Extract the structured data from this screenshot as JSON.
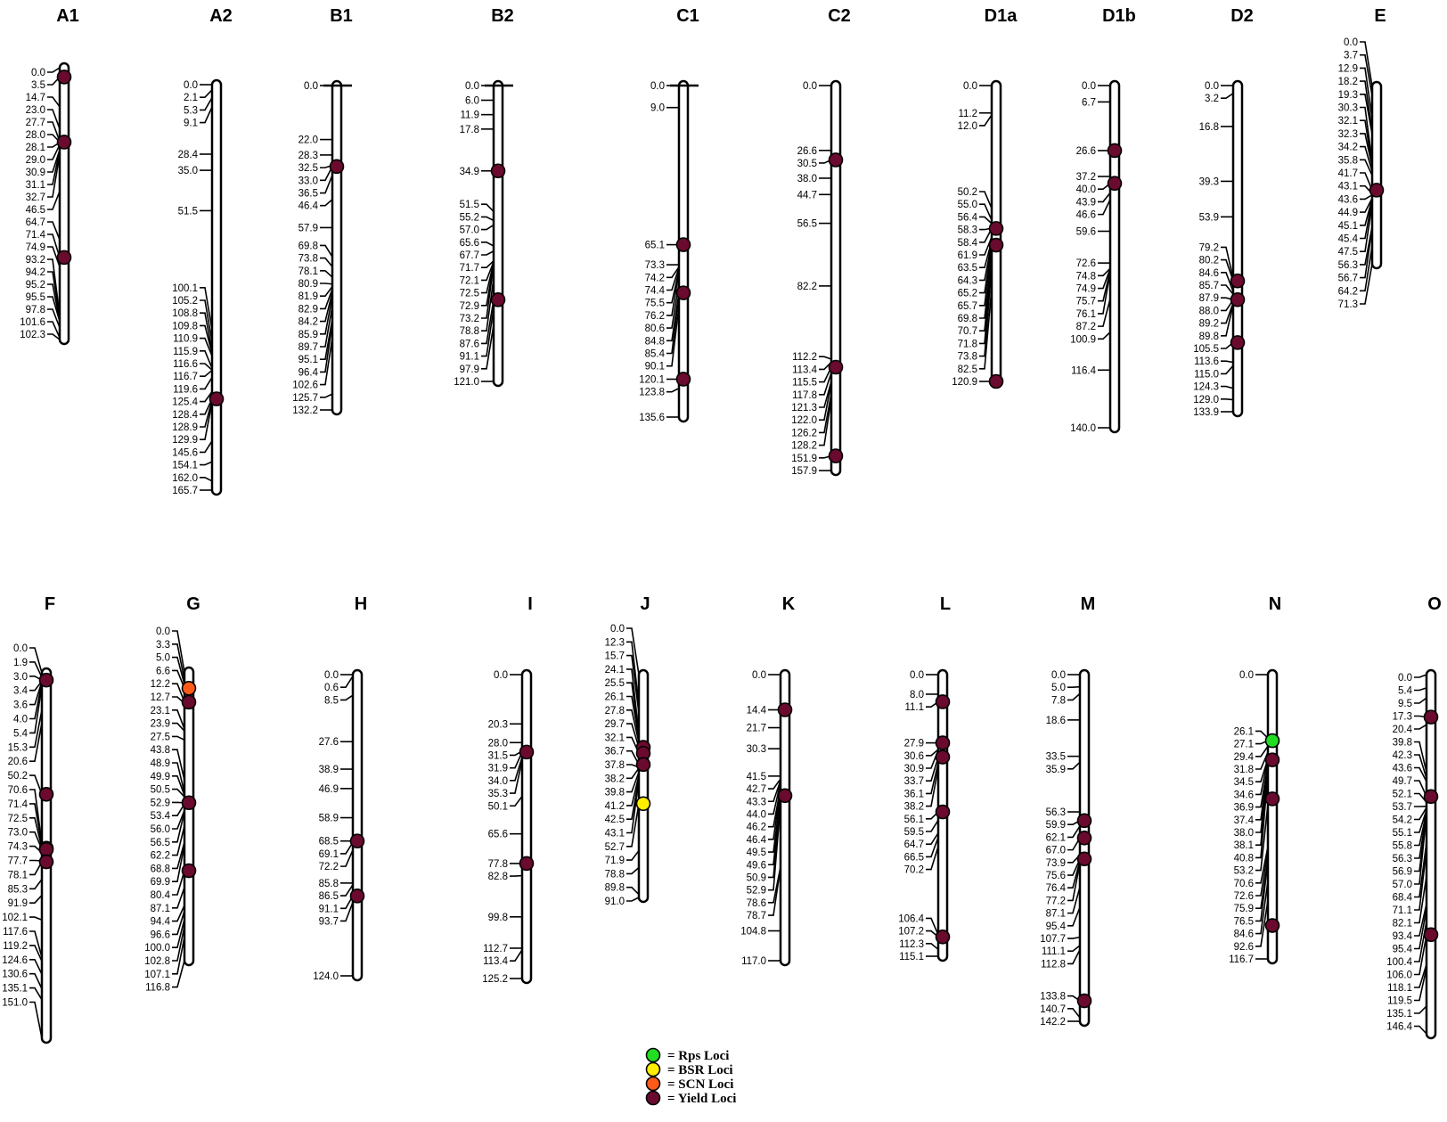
{
  "colors": {
    "rps": "#22dd22",
    "bsr": "#ffee00",
    "scn": "#ff5a1a",
    "yield": "#6a0a2e"
  },
  "legend": [
    {
      "label": "= Rps Loci",
      "color_key": "rps"
    },
    {
      "label": "= BSR Loci",
      "color_key": "bsr"
    },
    {
      "label": "= SCN Loci",
      "color_key": "scn"
    },
    {
      "label": "= Yield Loci",
      "color_key": "yield"
    }
  ],
  "chromosomes": [
    {
      "name": "A1",
      "positions": [
        "0.0",
        "3.5",
        "14.7",
        "23.0",
        "27.7",
        "28.0",
        "28.1",
        "29.0",
        "30.9",
        "31.1",
        "32.7",
        "46.5",
        "64.7",
        "71.4",
        "74.9",
        "93.2",
        "94.2",
        "95.2",
        "95.5",
        "97.8",
        "101.6",
        "102.3"
      ],
      "loci": [
        {
          "type": "yield",
          "pos": 3.5
        },
        {
          "type": "yield",
          "pos": 28.0
        },
        {
          "type": "yield",
          "pos": 71.4
        }
      ]
    },
    {
      "name": "A2",
      "positions": [
        "0.0",
        "2.1",
        "5.3",
        "9.1",
        "28.4",
        "35.0",
        "51.5",
        "100.1",
        "105.2",
        "108.8",
        "109.8",
        "110.9",
        "115.9",
        "116.6",
        "116.7",
        "119.6",
        "125.4",
        "128.4",
        "128.9",
        "129.9",
        "145.6",
        "154.1",
        "162.0",
        "165.7"
      ],
      "loci": [
        {
          "type": "yield",
          "pos": 128.4
        }
      ]
    },
    {
      "name": "B1",
      "positions": [
        "0.0",
        "22.0",
        "28.3",
        "32.5",
        "33.0",
        "36.5",
        "46.4",
        "57.9",
        "69.8",
        "73.8",
        "78.1",
        "80.9",
        "81.9",
        "82.9",
        "84.2",
        "85.9",
        "89.7",
        "95.1",
        "96.4",
        "102.6",
        "125.7",
        "132.2"
      ],
      "loci": [
        {
          "type": "yield",
          "pos": 33.0
        }
      ]
    },
    {
      "name": "B2",
      "positions": [
        "0.0",
        "6.0",
        "11.9",
        "17.8",
        "34.9",
        "51.5",
        "55.2",
        "57.0",
        "65.6",
        "67.7",
        "71.7",
        "72.1",
        "72.5",
        "72.9",
        "73.2",
        "78.8",
        "87.6",
        "91.1",
        "97.9",
        "121.0"
      ],
      "loci": [
        {
          "type": "yield",
          "pos": 34.9
        },
        {
          "type": "yield",
          "pos": 87.6
        }
      ]
    },
    {
      "name": "C1",
      "positions": [
        "0.0",
        "9.0",
        "65.1",
        "73.3",
        "74.2",
        "74.4",
        "75.5",
        "76.2",
        "80.6",
        "84.8",
        "85.4",
        "90.1",
        "120.1",
        "123.8",
        "135.6"
      ],
      "loci": [
        {
          "type": "yield",
          "pos": 65.1
        },
        {
          "type": "yield",
          "pos": 84.8
        },
        {
          "type": "yield",
          "pos": 120.1
        }
      ]
    },
    {
      "name": "C2",
      "positions": [
        "0.0",
        "26.6",
        "30.5",
        "38.0",
        "44.7",
        "56.5",
        "82.2",
        "112.2",
        "113.4",
        "115.5",
        "117.8",
        "121.3",
        "122.0",
        "126.2",
        "128.2",
        "151.9",
        "157.9"
      ],
      "loci": [
        {
          "type": "yield",
          "pos": 30.5
        },
        {
          "type": "yield",
          "pos": 115.5
        },
        {
          "type": "yield",
          "pos": 151.9
        }
      ]
    },
    {
      "name": "D1a",
      "positions": [
        "0.0",
        "11.2",
        "12.0",
        "50.2",
        "55.0",
        "56.4",
        "58.3",
        "58.4",
        "61.9",
        "63.5",
        "64.3",
        "65.2",
        "65.7",
        "69.8",
        "70.7",
        "71.8",
        "73.8",
        "82.5",
        "120.9"
      ],
      "loci": [
        {
          "type": "yield",
          "pos": 58.4
        },
        {
          "type": "yield",
          "pos": 65.2
        },
        {
          "type": "yield",
          "pos": 120.9
        }
      ]
    },
    {
      "name": "D1b",
      "positions": [
        "0.0",
        "6.7",
        "26.6",
        "37.2",
        "40.0",
        "43.9",
        "46.6",
        "59.6",
        "72.6",
        "74.8",
        "74.9",
        "75.7",
        "76.1",
        "87.2",
        "100.9",
        "116.4",
        "140.0"
      ],
      "loci": [
        {
          "type": "yield",
          "pos": 26.6
        },
        {
          "type": "yield",
          "pos": 40.0
        }
      ]
    },
    {
      "name": "D2",
      "positions": [
        "0.0",
        "3.2",
        "16.8",
        "39.3",
        "53.9",
        "79.2",
        "80.2",
        "84.6",
        "85.7",
        "87.9",
        "88.0",
        "89.2",
        "89.8",
        "105.5",
        "113.6",
        "115.0",
        "124.3",
        "129.0",
        "133.9"
      ],
      "loci": [
        {
          "type": "yield",
          "pos": 80.2
        },
        {
          "type": "yield",
          "pos": 87.9
        },
        {
          "type": "yield",
          "pos": 105.5
        }
      ]
    },
    {
      "name": "E",
      "positions": [
        "0.0",
        "3.7",
        "12.9",
        "18.2",
        "19.3",
        "30.3",
        "32.1",
        "32.3",
        "34.2",
        "35.8",
        "41.7",
        "43.1",
        "43.6",
        "44.9",
        "45.1",
        "45.4",
        "47.5",
        "56.3",
        "56.7",
        "64.2",
        "71.3"
      ],
      "loci": [
        {
          "type": "yield",
          "pos": 41.7
        }
      ]
    },
    {
      "name": "F",
      "positions": [
        "0.0",
        "1.9",
        "3.0",
        "3.4",
        "3.6",
        "4.0",
        "5.4",
        "15.3",
        "20.6",
        "50.2",
        "70.6",
        "71.4",
        "72.5",
        "73.0",
        "74.3",
        "77.7",
        "78.1",
        "85.3",
        "91.9",
        "102.1",
        "117.6",
        "119.2",
        "124.6",
        "130.6",
        "135.1",
        "151.0"
      ],
      "loci": [
        {
          "type": "yield",
          "pos": 3.0
        },
        {
          "type": "yield",
          "pos": 50.2
        },
        {
          "type": "rps",
          "pos": 72.5
        },
        {
          "type": "yield",
          "pos": 73.0
        },
        {
          "type": "yield",
          "pos": 78.1
        }
      ]
    },
    {
      "name": "G",
      "positions": [
        "0.0",
        "3.3",
        "5.0",
        "6.6",
        "12.2",
        "12.7",
        "23.1",
        "23.9",
        "27.5",
        "43.8",
        "48.9",
        "49.9",
        "50.5",
        "52.9",
        "53.4",
        "56.0",
        "56.5",
        "62.2",
        "68.8",
        "69.9",
        "80.4",
        "87.1",
        "94.4",
        "96.6",
        "100.0",
        "102.8",
        "107.1",
        "116.8"
      ],
      "loci": [
        {
          "type": "scn",
          "pos": 6.6
        },
        {
          "type": "yield",
          "pos": 12.2
        },
        {
          "type": "yield",
          "pos": 52.9
        },
        {
          "type": "yield",
          "pos": 80.4
        }
      ]
    },
    {
      "name": "H",
      "positions": [
        "0.0",
        "0.6",
        "8.5",
        "27.6",
        "38.9",
        "46.9",
        "58.9",
        "68.5",
        "69.1",
        "72.2",
        "85.8",
        "86.5",
        "91.1",
        "93.7",
        "124.0"
      ],
      "loci": [
        {
          "type": "yield",
          "pos": 68.5
        },
        {
          "type": "yield",
          "pos": 91.1
        }
      ]
    },
    {
      "name": "I",
      "positions": [
        "0.0",
        "20.3",
        "28.0",
        "31.5",
        "31.9",
        "34.0",
        "35.3",
        "50.1",
        "65.6",
        "77.8",
        "82.8",
        "99.8",
        "112.7",
        "113.4",
        "125.2"
      ],
      "loci": [
        {
          "type": "yield",
          "pos": 31.9
        },
        {
          "type": "yield",
          "pos": 77.8
        }
      ]
    },
    {
      "name": "J",
      "positions": [
        "0.0",
        "12.3",
        "15.7",
        "24.1",
        "25.5",
        "26.1",
        "27.8",
        "29.7",
        "32.1",
        "36.7",
        "37.8",
        "38.2",
        "39.8",
        "41.2",
        "42.5",
        "43.1",
        "52.7",
        "71.9",
        "78.8",
        "89.8",
        "91.0"
      ],
      "loci": [
        {
          "type": "yield",
          "pos": 29.7
        },
        {
          "type": "yield",
          "pos": 32.1
        },
        {
          "type": "yield",
          "pos": 36.7
        },
        {
          "type": "bsr",
          "pos": 52.7
        }
      ]
    },
    {
      "name": "K",
      "positions": [
        "0.0",
        "14.4",
        "21.7",
        "30.3",
        "41.5",
        "42.7",
        "43.3",
        "44.0",
        "46.2",
        "46.4",
        "49.5",
        "49.6",
        "50.9",
        "52.9",
        "78.6",
        "78.7",
        "104.8",
        "117.0"
      ],
      "loci": [
        {
          "type": "yield",
          "pos": 14.4
        },
        {
          "type": "yield",
          "pos": 49.5
        }
      ]
    },
    {
      "name": "L",
      "positions": [
        "0.0",
        "8.0",
        "11.1",
        "27.9",
        "30.6",
        "30.9",
        "33.7",
        "36.1",
        "38.2",
        "56.1",
        "59.5",
        "64.7",
        "66.5",
        "70.2",
        "106.4",
        "107.2",
        "112.3",
        "115.1"
      ],
      "loci": [
        {
          "type": "yield",
          "pos": 11.1
        },
        {
          "type": "yield",
          "pos": 27.9
        },
        {
          "type": "yield",
          "pos": 33.7
        },
        {
          "type": "yield",
          "pos": 56.1
        },
        {
          "type": "yield",
          "pos": 107.2
        }
      ]
    },
    {
      "name": "M",
      "positions": [
        "0.0",
        "5.0",
        "7.8",
        "18.6",
        "33.5",
        "35.9",
        "56.3",
        "59.9",
        "62.1",
        "67.0",
        "73.9",
        "75.6",
        "76.4",
        "77.2",
        "87.1",
        "95.4",
        "107.7",
        "111.1",
        "112.8",
        "133.8",
        "140.7",
        "142.2"
      ],
      "loci": [
        {
          "type": "yield",
          "pos": 59.9
        },
        {
          "type": "yield",
          "pos": 67.0
        },
        {
          "type": "yield",
          "pos": 75.6
        },
        {
          "type": "yield",
          "pos": 133.8
        }
      ]
    },
    {
      "name": "N",
      "positions": [
        "0.0",
        "26.1",
        "27.1",
        "29.4",
        "31.8",
        "34.5",
        "34.6",
        "36.9",
        "37.4",
        "38.0",
        "38.1",
        "40.8",
        "53.2",
        "70.6",
        "72.6",
        "75.9",
        "76.5",
        "84.6",
        "92.6",
        "116.7"
      ],
      "loci": [
        {
          "type": "rps",
          "pos": 27.1
        },
        {
          "type": "yield",
          "pos": 35.0
        },
        {
          "type": "yield",
          "pos": 51.0
        },
        {
          "type": "yield",
          "pos": 103.0
        }
      ]
    },
    {
      "name": "O",
      "positions": [
        "0.0",
        "5.4",
        "9.5",
        "17.3",
        "20.4",
        "39.8",
        "42.3",
        "43.6",
        "49.7",
        "52.1",
        "53.7",
        "54.2",
        "55.1",
        "55.8",
        "56.3",
        "56.9",
        "57.0",
        "68.4",
        "71.1",
        "82.1",
        "93.4",
        "95.4",
        "100.4",
        "106.0",
        "118.1",
        "119.5",
        "135.1",
        "146.4"
      ],
      "loci": [
        {
          "type": "yield",
          "pos": 17.3
        },
        {
          "type": "yield",
          "pos": 49.7
        },
        {
          "type": "yield",
          "pos": 106.0
        }
      ]
    }
  ]
}
